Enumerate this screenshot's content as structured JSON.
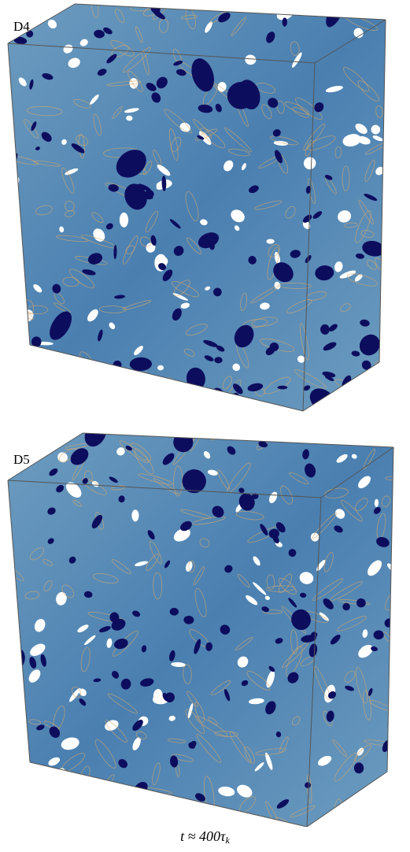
{
  "panels": [
    {
      "label": "D4"
    },
    {
      "label": "D5"
    }
  ],
  "caption": {
    "prefix": "t ≈ 400τ",
    "subscript": "k"
  },
  "colors": {
    "background": "#ffffff",
    "field_light": "#6d9cbf",
    "field_mid": "#4a7fb0",
    "blob_dark": "#0d0d5e",
    "interface": "#d7a86a",
    "box_edge": "#555555"
  }
}
